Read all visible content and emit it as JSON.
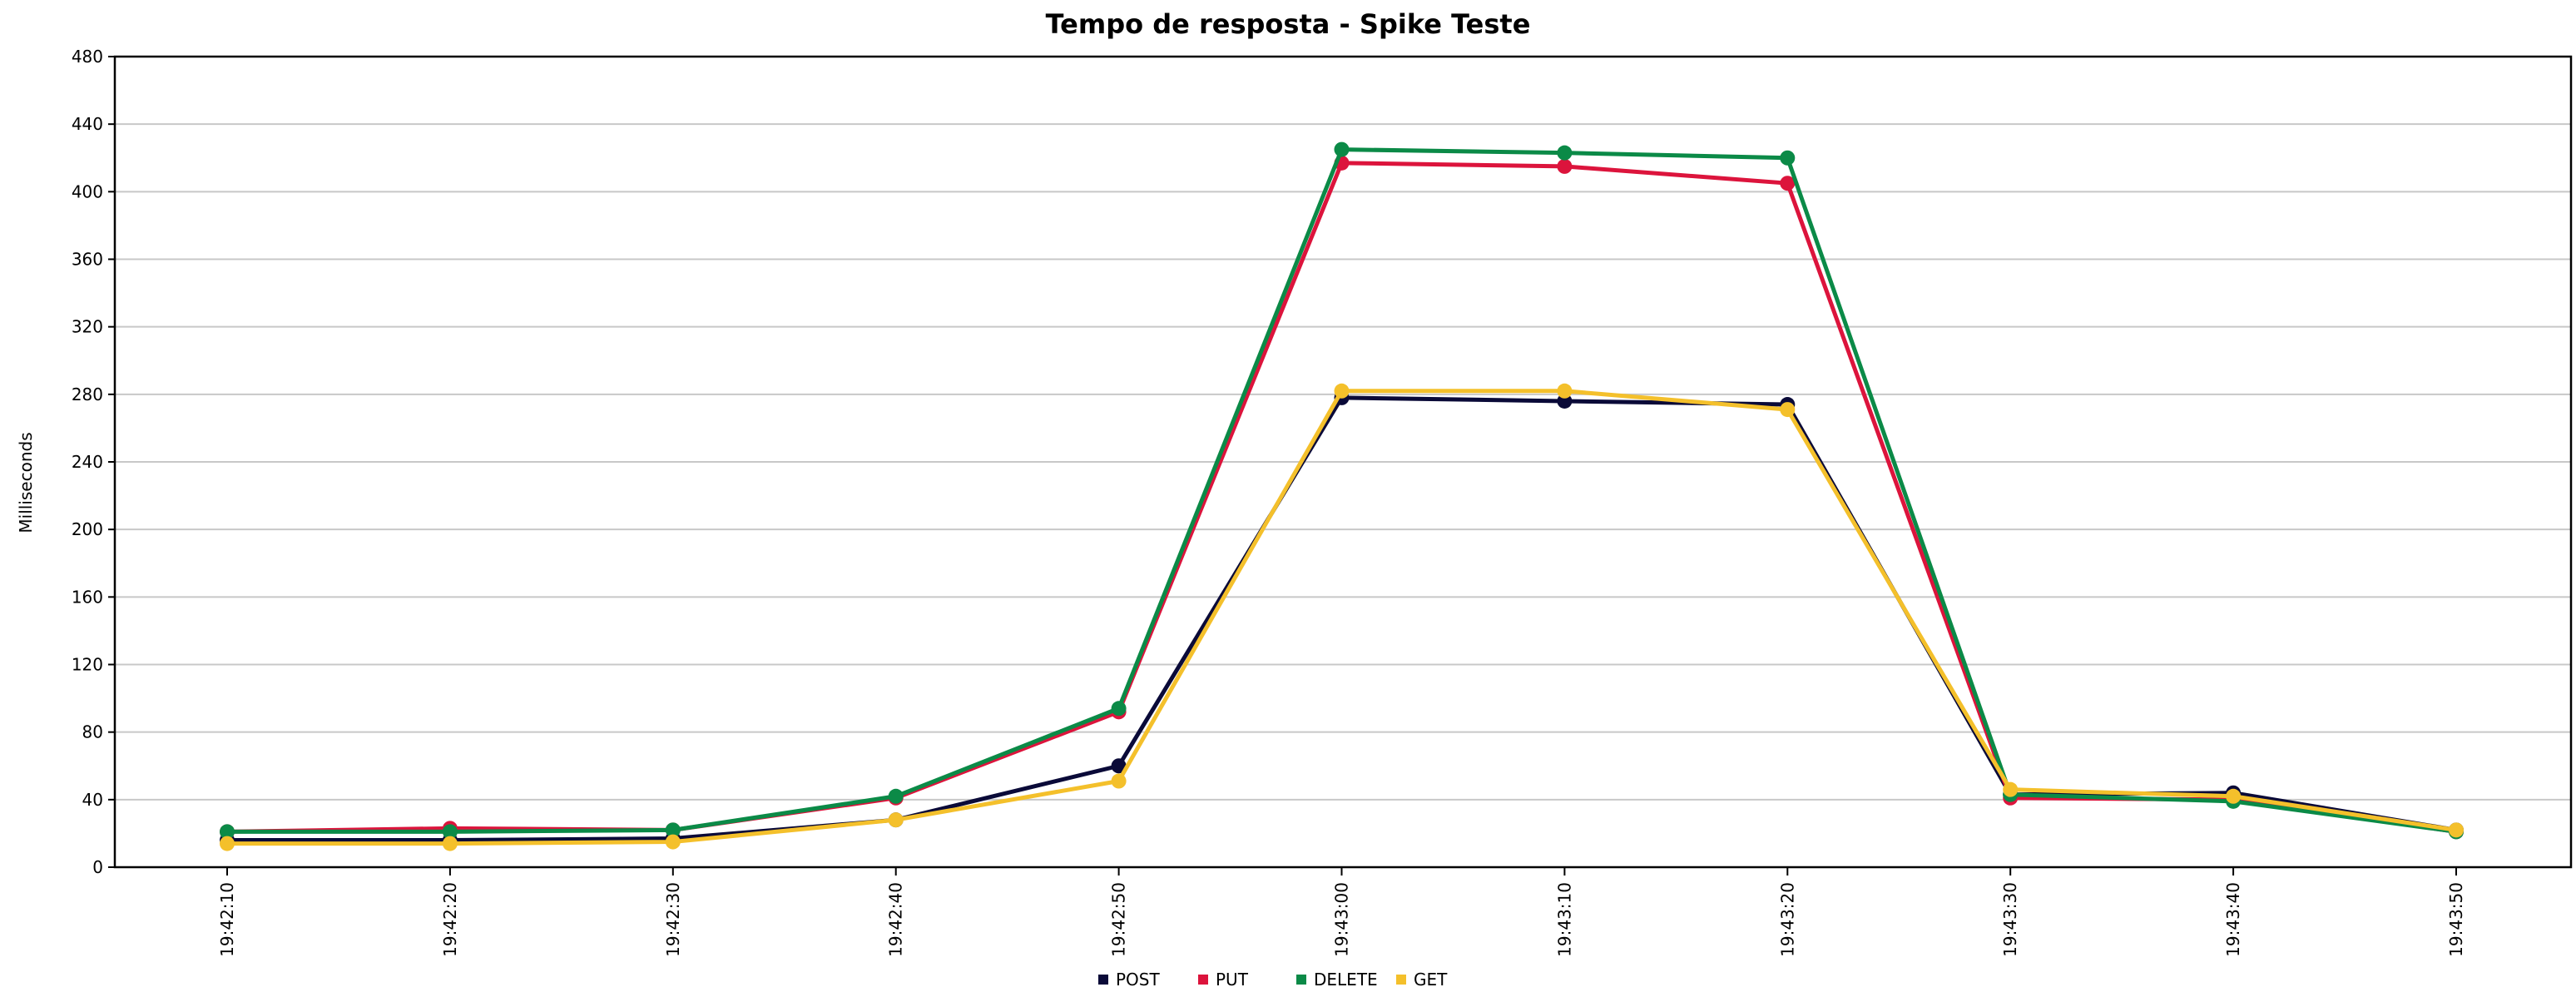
{
  "chart_data": {
    "type": "line",
    "title": "Tempo de resposta - Spike Teste",
    "xlabel": "",
    "ylabel": "Milliseconds",
    "ylim": [
      0,
      480
    ],
    "yticks": [
      0,
      40,
      80,
      120,
      160,
      200,
      240,
      280,
      320,
      360,
      400,
      440,
      480
    ],
    "grid": true,
    "legend": "bottom-center",
    "x": [
      "19:42:10",
      "19:42:20",
      "19:42:30",
      "19:42:40",
      "19:42:50",
      "19:43:00",
      "19:43:10",
      "19:43:20",
      "19:43:30",
      "19:43:40",
      "19:43:50"
    ],
    "series": [
      {
        "name": "POST",
        "color": "#0a0a38",
        "values": [
          16,
          16,
          17,
          28,
          60,
          278,
          276,
          274,
          43,
          44,
          22
        ]
      },
      {
        "name": "PUT",
        "color": "#dc143c",
        "values": [
          21,
          23,
          22,
          41,
          92,
          417,
          415,
          405,
          41,
          40,
          21
        ]
      },
      {
        "name": "DELETE",
        "color": "#0b8a47",
        "values": [
          21,
          21,
          22,
          42,
          94,
          425,
          423,
          420,
          43,
          39,
          21
        ]
      },
      {
        "name": "GET",
        "color": "#f4c02b",
        "values": [
          14,
          14,
          15,
          28,
          51,
          282,
          282,
          271,
          46,
          42,
          22
        ]
      }
    ]
  }
}
